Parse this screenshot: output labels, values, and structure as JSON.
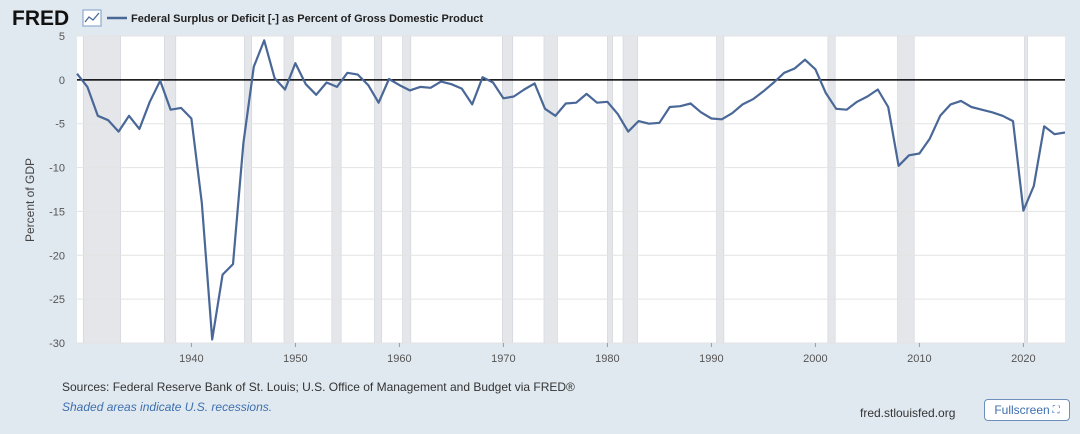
{
  "header": {
    "logo": "FRED",
    "logo_icon": "chart-line-icon"
  },
  "chart_data": {
    "type": "line",
    "series": [
      {
        "name": "Federal Surplus or Deficit [-] as Percent of Gross Domestic Product",
        "color": "#4a6897",
        "x": [
          1929,
          1930,
          1931,
          1932,
          1933,
          1934,
          1935,
          1936,
          1937,
          1938,
          1939,
          1940,
          1941,
          1942,
          1943,
          1944,
          1945,
          1946,
          1947,
          1948,
          1949,
          1950,
          1951,
          1952,
          1953,
          1954,
          1955,
          1956,
          1957,
          1958,
          1959,
          1960,
          1961,
          1962,
          1963,
          1964,
          1965,
          1966,
          1967,
          1968,
          1969,
          1970,
          1971,
          1972,
          1973,
          1974,
          1975,
          1976,
          1977,
          1978,
          1979,
          1980,
          1981,
          1982,
          1983,
          1984,
          1985,
          1986,
          1987,
          1988,
          1989,
          1990,
          1991,
          1992,
          1993,
          1994,
          1995,
          1996,
          1997,
          1998,
          1999,
          2000,
          2001,
          2002,
          2003,
          2004,
          2005,
          2006,
          2007,
          2008,
          2009,
          2010,
          2011,
          2012,
          2013,
          2014,
          2015,
          2016,
          2017,
          2018,
          2019,
          2020,
          2021,
          2022,
          2023,
          2024
        ],
        "y": [
          0.7,
          -0.8,
          -4.1,
          -4.6,
          -5.9,
          -4.1,
          -5.6,
          -2.5,
          -0.1,
          -3.4,
          -3.2,
          -4.4,
          -14.0,
          -29.6,
          -22.2,
          -21.0,
          -7.2,
          1.5,
          4.5,
          0.2,
          -1.1,
          1.9,
          -0.5,
          -1.7,
          -0.3,
          -0.8,
          0.8,
          0.6,
          -0.6,
          -2.6,
          0.1,
          -0.6,
          -1.2,
          -0.8,
          -0.9,
          -0.2,
          -0.5,
          -1.0,
          -2.8,
          0.3,
          -0.3,
          -2.1,
          -1.9,
          -1.1,
          -0.4,
          -3.3,
          -4.1,
          -2.7,
          -2.6,
          -1.6,
          -2.6,
          -2.5,
          -3.9,
          -5.9,
          -4.7,
          -5.0,
          -4.9,
          -3.1,
          -3.0,
          -2.7,
          -3.7,
          -4.4,
          -4.5,
          -3.8,
          -2.8,
          -2.2,
          -1.3,
          -0.3,
          0.8,
          1.3,
          2.3,
          1.2,
          -1.5,
          -3.3,
          -3.4,
          -2.5,
          -1.9,
          -1.1,
          -3.1,
          -9.8,
          -8.6,
          -8.4,
          -6.7,
          -4.1,
          -2.8,
          -2.4,
          -3.1,
          -3.4,
          -3.7,
          -4.1,
          -4.7,
          -14.9,
          -12.1,
          -5.3,
          -6.2,
          -6.0
        ]
      }
    ],
    "recessions": [
      [
        1929.6,
        1933.2
      ],
      [
        1937.4,
        1938.5
      ],
      [
        1945.1,
        1945.8
      ],
      [
        1948.9,
        1949.8
      ],
      [
        1953.5,
        1954.4
      ],
      [
        1957.6,
        1958.3
      ],
      [
        1960.3,
        1961.1
      ],
      [
        1969.9,
        1970.9
      ],
      [
        1973.9,
        1975.2
      ],
      [
        1980.0,
        1980.5
      ],
      [
        1981.5,
        1982.9
      ],
      [
        1990.5,
        1991.2
      ],
      [
        2001.2,
        2001.9
      ],
      [
        2007.9,
        2009.5
      ],
      [
        2020.1,
        2020.4
      ]
    ],
    "xlim": [
      1929,
      2024
    ],
    "ylim": [
      -30,
      5
    ],
    "xticks": [
      "1940",
      "1950",
      "1960",
      "1970",
      "1980",
      "1990",
      "2000",
      "2010",
      "2020"
    ],
    "yticks": [
      "5",
      "0",
      "-5",
      "-10",
      "-15",
      "-20",
      "-25",
      "-30"
    ],
    "ylabel": "Percent of GDP",
    "xlabel": "",
    "grid": true,
    "zero_line": true,
    "legend_position": "top-left"
  },
  "footer": {
    "sources": "Sources: Federal Reserve Bank of St. Louis; U.S. Office of Management and Budget via FRED®",
    "recession_note": "Shaded areas indicate U.S. recessions.",
    "site": "fred.stlouisfed.org",
    "fullscreen_label": "Fullscreen"
  }
}
